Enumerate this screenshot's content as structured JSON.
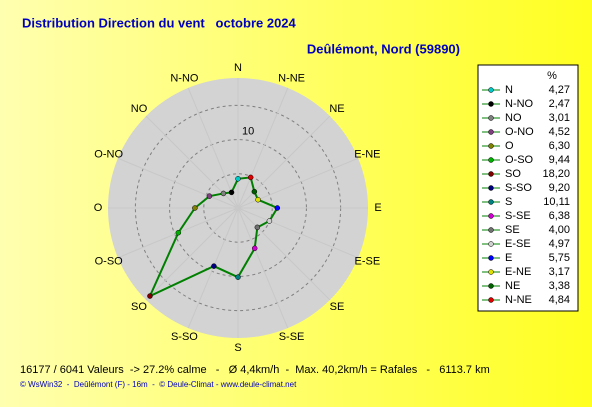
{
  "chart_data": {
    "type": "windrose",
    "title": "Distribution Direction du vent   octobre 2024",
    "subtitle": "Deûlémont, Nord (59890)",
    "legend_header": "%",
    "categories": [
      "N",
      "N-NO",
      "NO",
      "O-NO",
      "O",
      "O-SO",
      "SO",
      "S-SO",
      "S",
      "S-SE",
      "SE",
      "E-SE",
      "E",
      "E-NE",
      "NE",
      "N-NE"
    ],
    "values": [
      4.27,
      2.47,
      3.01,
      4.52,
      6.3,
      9.44,
      18.2,
      9.2,
      10.11,
      6.38,
      4.0,
      4.97,
      5.75,
      3.17,
      3.38,
      4.84
    ],
    "value_labels": [
      "4,27",
      "2,47",
      "3,01",
      "4,52",
      "6,30",
      "9,44",
      "18,20",
      "9,20",
      "10,11",
      "6,38",
      "4,00",
      "4,97",
      "5,75",
      "3,17",
      "3,38",
      "4,84"
    ],
    "colors": [
      "#00c8c8",
      "#000000",
      "#808080",
      "#804080",
      "#808000",
      "#00b000",
      "#800000",
      "#000080",
      "#008080",
      "#d000d0",
      "#707070",
      "#d0d0d0",
      "#0000ff",
      "#e0e000",
      "#006000",
      "#e00000"
    ],
    "line_color": "#008000",
    "rlim": [
      0,
      19
    ],
    "rticks": [
      10
    ],
    "rgrid": [
      5,
      10,
      15
    ],
    "legend": "right",
    "footer": [
      "16177 / 6041 Valeurs  -> 27.2% calme   -   Ø 4,4km/h  -  Max. 40,2km/h = Rafales   -   6113.7 km",
      "© WsWin32  -  Deûlémont (F) - 16m  -  © Deule-Climat - www.deule-climat.net"
    ]
  }
}
